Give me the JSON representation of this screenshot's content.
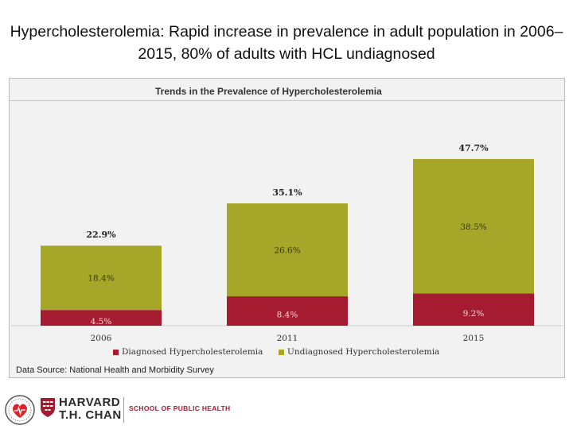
{
  "slide": {
    "title": "Hypercholesterolemia: Rapid increase in prevalence in adult population in 2006–2015, 80% of adults with HCL undiagnosed"
  },
  "chart_data": {
    "type": "bar",
    "stacked": true,
    "title": "Trends in the Prevalence of Hypercholesterolemia",
    "xlabel": "",
    "ylabel": "",
    "ylim": [
      0,
      50
    ],
    "grid": false,
    "legend_position": "bottom",
    "categories": [
      "2006",
      "2011",
      "2015"
    ],
    "series": [
      {
        "name": "Diagnosed Hypercholesterolemia",
        "color": "#a51c30",
        "values": [
          4.5,
          8.4,
          9.2
        ],
        "labels": [
          "4.5%",
          "8.4%",
          "9.2%"
        ]
      },
      {
        "name": "Undiagnosed Hypercholesterolemia",
        "color": "#a6a628",
        "values": [
          18.4,
          26.6,
          38.5
        ],
        "labels": [
          "18.4%",
          "26.6%",
          "38.5%"
        ]
      }
    ],
    "totals": [
      22.9,
      35.1,
      47.7
    ],
    "total_labels": [
      "22.9%",
      "35.1%",
      "47.7%"
    ],
    "source": "Data Source: National Health and Morbidity Survey"
  },
  "footer": {
    "brand_line1": "HARVARD",
    "brand_line2": "T.H. CHAN",
    "school": "SCHOOL OF PUBLIC HEALTH"
  },
  "colors": {
    "diagnosed": "#a51c30",
    "undiagnosed": "#a6a628"
  }
}
